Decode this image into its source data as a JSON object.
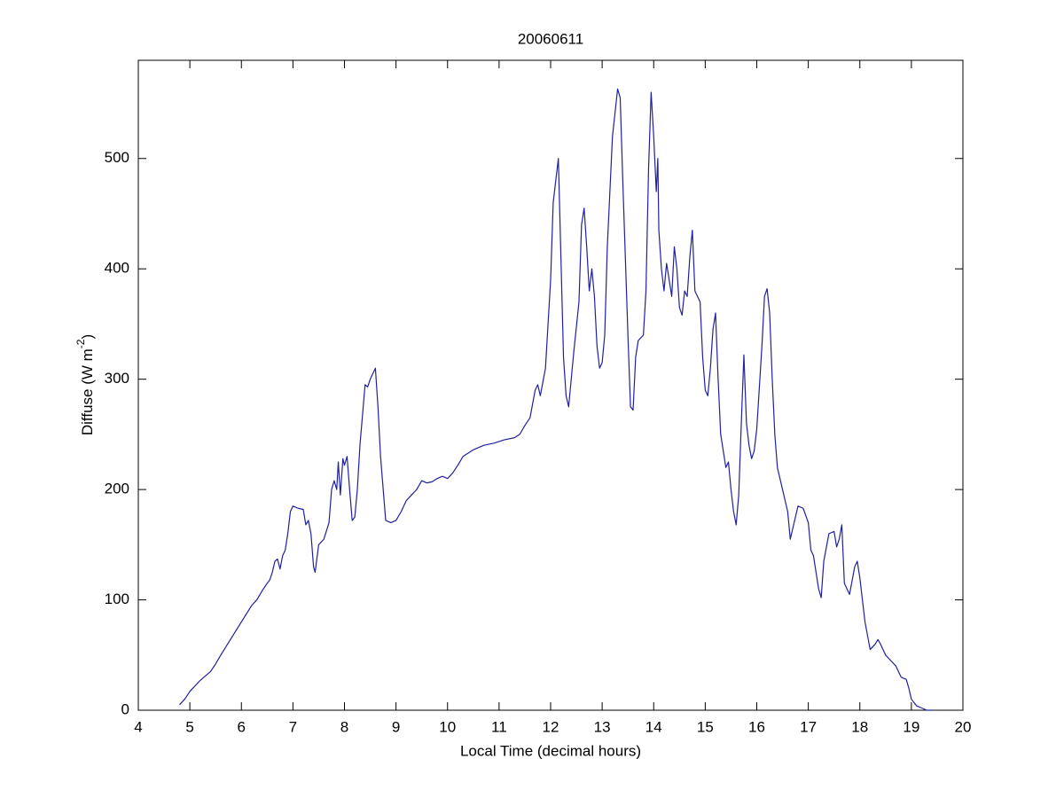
{
  "chart_data": {
    "type": "line",
    "title": "20060611",
    "xlabel": "Local Time (decimal hours)",
    "ylabel": {
      "text": "Diffuse (W m",
      "superscript": "-2",
      "suffix": ")"
    },
    "xlim": [
      4,
      20
    ],
    "ylim": [
      0,
      589
    ],
    "xticks": [
      4,
      5,
      6,
      7,
      8,
      9,
      10,
      11,
      12,
      13,
      14,
      15,
      16,
      17,
      18,
      19,
      20
    ],
    "yticks": [
      0,
      100,
      200,
      300,
      400,
      500
    ],
    "grid": false,
    "series": [
      {
        "color": "#2020a0",
        "x": [
          4.8,
          4.9,
          5.0,
          5.2,
          5.4,
          5.5,
          5.6,
          5.8,
          6.0,
          6.2,
          6.3,
          6.4,
          6.5,
          6.55,
          6.6,
          6.65,
          6.7,
          6.75,
          6.8,
          6.85,
          6.9,
          6.95,
          7.0,
          7.1,
          7.2,
          7.25,
          7.3,
          7.35,
          7.4,
          7.43,
          7.5,
          7.6,
          7.7,
          7.75,
          7.8,
          7.85,
          7.88,
          7.92,
          7.97,
          8.0,
          8.05,
          8.1,
          8.15,
          8.2,
          8.25,
          8.3,
          8.4,
          8.45,
          8.5,
          8.55,
          8.6,
          8.65,
          8.7,
          8.8,
          8.9,
          9.0,
          9.1,
          9.2,
          9.3,
          9.4,
          9.5,
          9.6,
          9.7,
          9.8,
          9.9,
          10.0,
          10.1,
          10.2,
          10.3,
          10.5,
          10.7,
          10.9,
          11.1,
          11.3,
          11.4,
          11.5,
          11.6,
          11.7,
          11.75,
          11.8,
          11.9,
          12.0,
          12.05,
          12.1,
          12.15,
          12.2,
          12.25,
          12.3,
          12.35,
          12.45,
          12.55,
          12.6,
          12.65,
          12.7,
          12.75,
          12.8,
          12.85,
          12.9,
          12.95,
          13.0,
          13.05,
          13.1,
          13.2,
          13.3,
          13.35,
          13.4,
          13.5,
          13.55,
          13.6,
          13.65,
          13.7,
          13.8,
          13.85,
          13.9,
          13.95,
          14.0,
          14.05,
          14.08,
          14.1,
          14.15,
          14.2,
          14.25,
          14.3,
          14.35,
          14.4,
          14.45,
          14.5,
          14.55,
          14.6,
          14.65,
          14.7,
          14.75,
          14.8,
          14.85,
          14.9,
          14.95,
          15.0,
          15.05,
          15.1,
          15.15,
          15.2,
          15.25,
          15.3,
          15.35,
          15.4,
          15.45,
          15.5,
          15.55,
          15.6,
          15.65,
          15.7,
          15.75,
          15.8,
          15.85,
          15.9,
          15.95,
          16.0,
          16.1,
          16.15,
          16.2,
          16.25,
          16.3,
          16.35,
          16.4,
          16.5,
          16.6,
          16.65,
          16.7,
          16.8,
          16.9,
          17.0,
          17.05,
          17.1,
          17.15,
          17.2,
          17.25,
          17.3,
          17.4,
          17.5,
          17.55,
          17.6,
          17.65,
          17.7,
          17.8,
          17.9,
          17.95,
          18.0,
          18.1,
          18.2,
          18.3,
          18.35,
          18.4,
          18.5,
          18.6,
          18.7,
          18.8,
          18.9,
          18.95,
          19.0,
          19.1,
          19.2,
          19.3,
          19.4
        ],
        "values": [
          5,
          10,
          17,
          27,
          35,
          42,
          50,
          65,
          80,
          95,
          100,
          108,
          115,
          118,
          125,
          135,
          137,
          128,
          140,
          145,
          160,
          180,
          185,
          183,
          182,
          168,
          172,
          160,
          130,
          125,
          150,
          155,
          170,
          200,
          208,
          200,
          225,
          195,
          228,
          222,
          230,
          200,
          172,
          175,
          200,
          240,
          295,
          293,
          300,
          305,
          310,
          275,
          230,
          172,
          170,
          172,
          180,
          190,
          195,
          200,
          208,
          206,
          207,
          210,
          212,
          210,
          215,
          222,
          230,
          236,
          240,
          242,
          245,
          247,
          250,
          258,
          265,
          290,
          295,
          285,
          310,
          390,
          460,
          480,
          500,
          410,
          320,
          285,
          275,
          325,
          370,
          440,
          455,
          420,
          380,
          400,
          375,
          330,
          310,
          315,
          340,
          420,
          520,
          563,
          555,
          480,
          340,
          275,
          272,
          320,
          335,
          340,
          380,
          490,
          560,
          520,
          470,
          500,
          435,
          400,
          380,
          405,
          390,
          375,
          420,
          400,
          365,
          358,
          380,
          375,
          410,
          435,
          380,
          375,
          370,
          320,
          290,
          285,
          310,
          345,
          360,
          300,
          250,
          235,
          220,
          225,
          200,
          180,
          168,
          195,
          260,
          322,
          260,
          240,
          228,
          235,
          255,
          330,
          375,
          382,
          360,
          300,
          250,
          220,
          200,
          180,
          155,
          165,
          185,
          183,
          170,
          145,
          140,
          125,
          110,
          102,
          135,
          160,
          162,
          148,
          155,
          168,
          115,
          105,
          130,
          135,
          120,
          80,
          55,
          60,
          64,
          60,
          50,
          45,
          40,
          30,
          28,
          20,
          10,
          4,
          2,
          0,
          0
        ]
      }
    ]
  }
}
